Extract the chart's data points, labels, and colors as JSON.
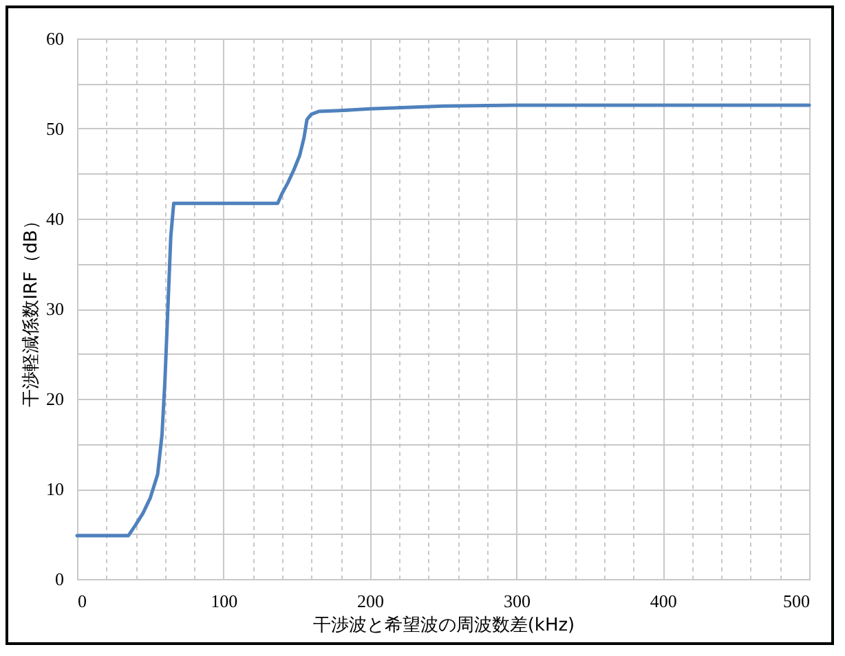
{
  "chart_data": {
    "type": "line",
    "xlabel": "干渉波と希望波の周波数差(kHz)",
    "ylabel": "干渉軽減係数IRF（dB）",
    "x": [
      0,
      35,
      40,
      45,
      50,
      55,
      58,
      60,
      62,
      64,
      66,
      137,
      140,
      144,
      148,
      152,
      155,
      157,
      160,
      165,
      180,
      200,
      250,
      300,
      400,
      500
    ],
    "series": [
      {
        "color": "#4f81bd",
        "values": [
          4.8,
          4.8,
          6,
          7.3,
          9,
          11.6,
          16,
          22,
          30,
          38,
          41.7,
          41.7,
          42.8,
          44,
          45.4,
          47,
          49,
          51,
          51.6,
          51.9,
          52,
          52.2,
          52.5,
          52.6,
          52.6,
          52.6
        ]
      }
    ],
    "xlim": [
      0,
      500
    ],
    "ylim": [
      0,
      60
    ],
    "xticks": [
      0,
      {
        "value": 20,
        "label": null
      },
      {
        "value": 40,
        "label": null
      },
      {
        "value": 60,
        "label": null
      },
      {
        "value": 80,
        "label": null
      },
      100,
      {
        "value": 120,
        "label": null
      },
      {
        "value": 140,
        "label": null
      },
      {
        "value": 160,
        "label": null
      },
      {
        "value": 180,
        "label": null
      },
      200,
      {
        "value": 220,
        "label": null
      },
      {
        "value": 240,
        "label": null
      },
      {
        "value": 260,
        "label": null
      },
      {
        "value": 280,
        "label": null
      },
      300,
      {
        "value": 320,
        "label": null
      },
      {
        "value": 340,
        "label": null
      },
      {
        "value": 360,
        "label": null
      },
      {
        "value": 380,
        "label": null
      },
      400,
      {
        "value": 420,
        "label": null
      },
      {
        "value": 440,
        "label": null
      },
      {
        "value": 460,
        "label": null
      },
      {
        "value": 480,
        "label": null
      },
      500
    ],
    "yticks": [
      0,
      {
        "value": 5,
        "label": null
      },
      10,
      {
        "value": 15,
        "label": null
      },
      20,
      {
        "value": 25,
        "label": null
      },
      30,
      {
        "value": 35,
        "label": null
      },
      40,
      {
        "value": 45,
        "label": null
      },
      50,
      {
        "value": 55,
        "label": null
      },
      60
    ],
    "grid": true,
    "marker": "none",
    "line_style": "solid"
  }
}
